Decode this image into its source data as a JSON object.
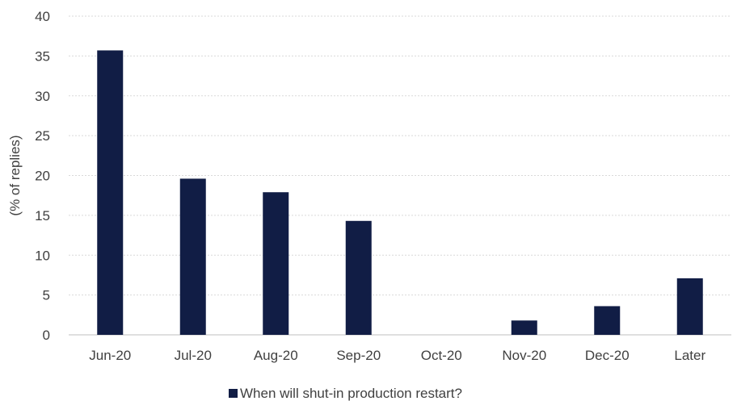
{
  "chart_data": {
    "type": "bar",
    "title": "",
    "xlabel": "",
    "ylabel": "(% of replies)",
    "categories": [
      "Jun-20",
      "Jul-20",
      "Aug-20",
      "Sep-20",
      "Oct-20",
      "Nov-20",
      "Dec-20",
      "Later"
    ],
    "series": [
      {
        "name": "When will shut-in production restart?",
        "values": [
          35.7,
          19.6,
          17.9,
          14.3,
          0,
          1.8,
          3.6,
          7.1
        ],
        "color": "#111d45"
      }
    ],
    "ylim": [
      0,
      40
    ],
    "yticks": [
      "0",
      "5",
      "10",
      "15",
      "20",
      "25",
      "30",
      "35",
      "40"
    ],
    "grid": true,
    "legend_position": "bottom"
  }
}
